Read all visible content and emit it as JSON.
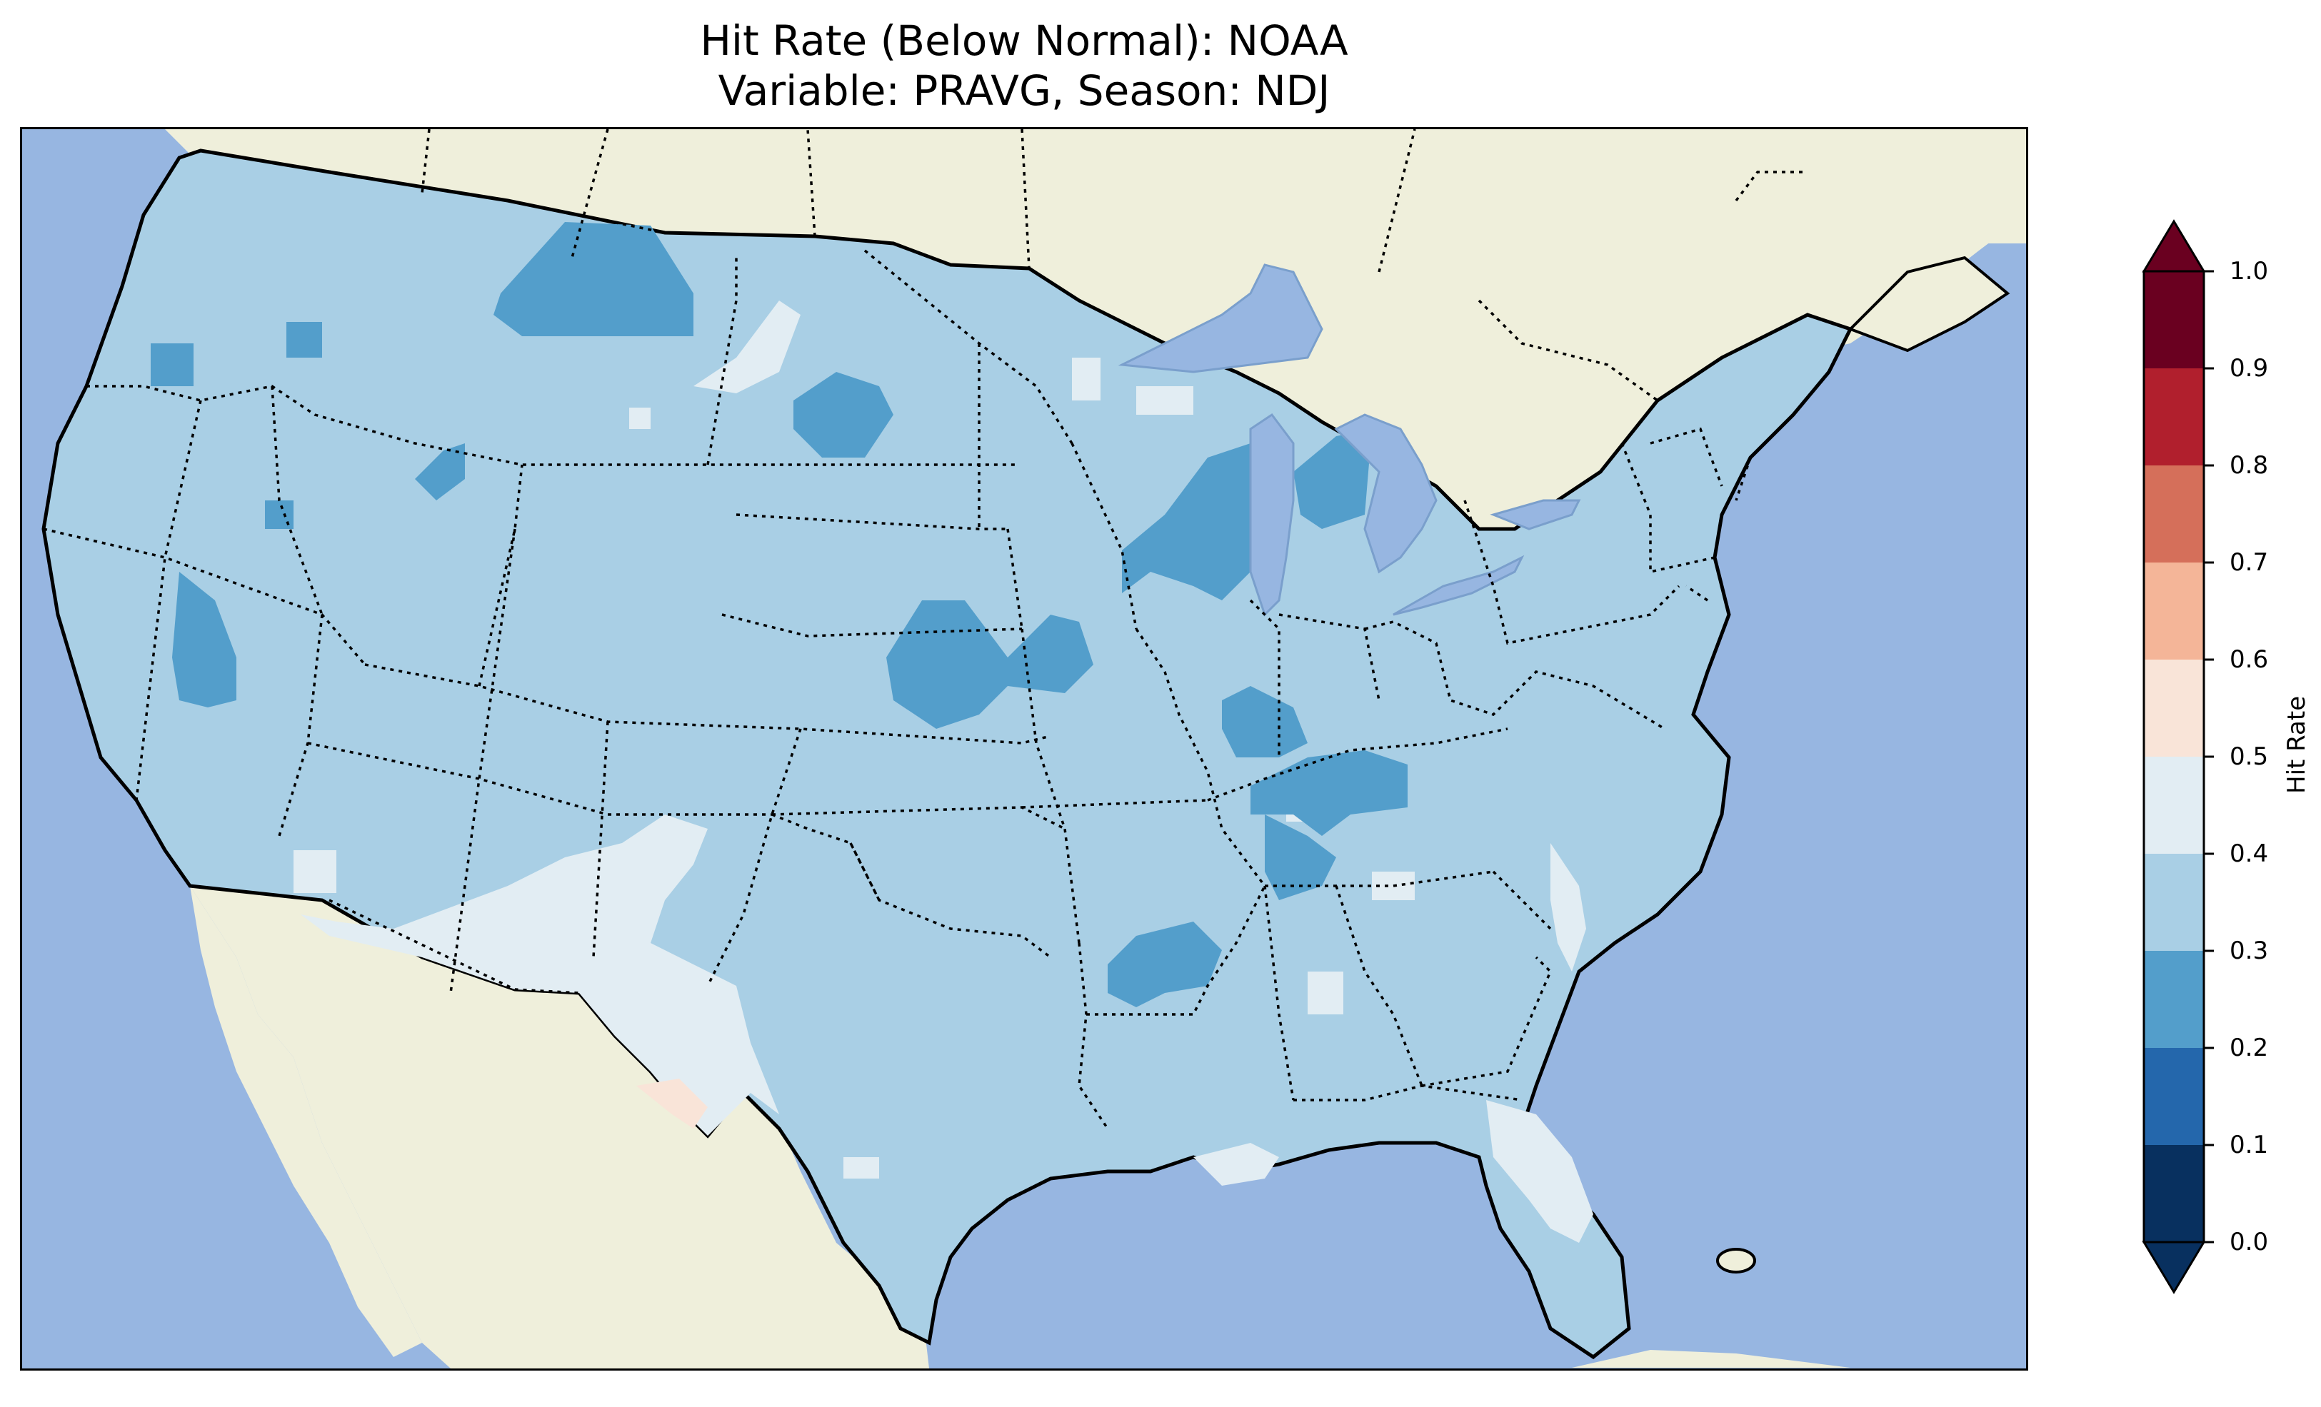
{
  "title_line1": "Hit Rate (Below Normal): NOAA",
  "title_line2": "Variable: PRAVG, Season: NDJ",
  "colors": {
    "ocean": "#97b6e1",
    "land": "#efefdb",
    "lake": "#97b6e1",
    "hit_0.2_0.3": "#539ecb",
    "hit_0.3_0.4": "#a9cfe5",
    "hit_0.4_0.5": "#e2edf3",
    "hit_0.5_0.6": "#f9e4d8"
  },
  "colorbar": {
    "label": "Hit Rate",
    "ticks": [
      "0.0",
      "0.1",
      "0.2",
      "0.3",
      "0.4",
      "0.5",
      "0.6",
      "0.7",
      "0.8",
      "0.9",
      "1.0"
    ],
    "bins": [
      {
        "range": [
          0.0,
          0.1
        ],
        "color": "#08305f"
      },
      {
        "range": [
          0.1,
          0.2
        ],
        "color": "#2467ac"
      },
      {
        "range": [
          0.2,
          0.3
        ],
        "color": "#539ecb"
      },
      {
        "range": [
          0.3,
          0.4
        ],
        "color": "#a9cfe5"
      },
      {
        "range": [
          0.4,
          0.5
        ],
        "color": "#e2edf3"
      },
      {
        "range": [
          0.5,
          0.6
        ],
        "color": "#f9e4d8"
      },
      {
        "range": [
          0.6,
          0.7
        ],
        "color": "#f4b598"
      },
      {
        "range": [
          0.7,
          0.8
        ],
        "color": "#d56f5a"
      },
      {
        "range": [
          0.8,
          0.9
        ],
        "color": "#b11f2d"
      },
      {
        "range": [
          0.9,
          1.0
        ],
        "color": "#6a0020"
      }
    ],
    "extend": "both"
  },
  "map_field": {
    "dominant_value_bin": "0.3-0.4",
    "regions_0.2_0.3": [
      "central Montana",
      "south-central South Dakota",
      "Wisconsin",
      "Michigan lower peninsula",
      "southern Nebraska / northern Kansas",
      "central Illinois",
      "Kentucky / Tennessee",
      "Louisiana / Mississippi",
      "northern Nevada",
      "eastern California",
      "Oregon"
    ],
    "regions_0.4_0.5": [
      "southern Arizona / New Mexico",
      "west Texas",
      "South Carolina",
      "Florida",
      "Louisiana coast",
      "southern Texas"
    ],
    "regions_0.5_0.6": [
      "Big Bend, Texas"
    ]
  }
}
